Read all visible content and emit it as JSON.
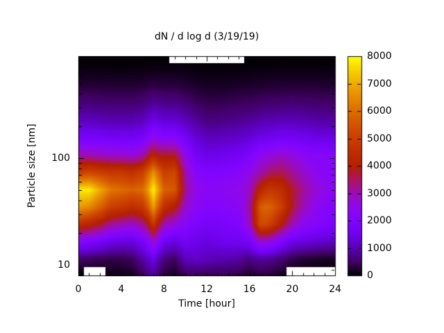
{
  "figure": {
    "title": "dN / d log d (3/19/19)",
    "background": "#ffffff",
    "text_color": "#000000"
  },
  "axes": {
    "xlabel": "Time [hour]",
    "ylabel": "Particle size [nm]",
    "x_range": [
      0,
      24
    ],
    "x_major_tick_values": [
      0,
      4,
      8,
      12,
      16,
      20,
      24
    ],
    "x_tick_labels": [
      "0",
      "4",
      "8",
      "12",
      "16",
      "20",
      "24"
    ],
    "x_minor_step": 1,
    "y_scale": "log",
    "y_range_nm": [
      8,
      900
    ],
    "y_major_tick_values": [
      10,
      100
    ],
    "y_tick_labels": [
      "10",
      "100"
    ],
    "frame_color": "#000000"
  },
  "colorbar": {
    "range": [
      0,
      8000
    ],
    "tick_values": [
      0,
      1000,
      2000,
      3000,
      4000,
      5000,
      6000,
      7000,
      8000
    ],
    "tick_labels": [
      "0",
      "1000",
      "2000",
      "3000",
      "4000",
      "5000",
      "6000",
      "7000",
      "8000"
    ],
    "palette_stops": [
      {
        "t": 0.0,
        "hex": "#000000"
      },
      {
        "t": 0.0625,
        "hex": "#400062"
      },
      {
        "t": 0.125,
        "hex": "#5a00b4"
      },
      {
        "t": 0.1875,
        "hex": "#6e02ec"
      },
      {
        "t": 0.25,
        "hex": "#8004ff"
      },
      {
        "t": 0.3125,
        "hex": "#8f08ec"
      },
      {
        "t": 0.375,
        "hex": "#9c0db4"
      },
      {
        "t": 0.4375,
        "hex": "#a91562"
      },
      {
        "t": 0.5,
        "hex": "#b42000"
      },
      {
        "t": 0.5625,
        "hex": "#bf2d00"
      },
      {
        "t": 0.625,
        "hex": "#ca3e00"
      },
      {
        "t": 0.6875,
        "hex": "#d35300"
      },
      {
        "t": 0.75,
        "hex": "#dd6c00"
      },
      {
        "t": 0.8125,
        "hex": "#e68900"
      },
      {
        "t": 0.875,
        "hex": "#efab00"
      },
      {
        "t": 0.9375,
        "hex": "#f7d200"
      },
      {
        "t": 1.0,
        "hex": "#ffff00"
      }
    ]
  },
  "chart_data": {
    "type": "heatmap",
    "title": "dN / d log d (3/19/19)",
    "xlabel": "Time [hour]",
    "ylabel": "Particle size [nm]",
    "value_range": [
      0,
      8000
    ],
    "missing_note": "null = no data (rendered white)",
    "x_hours": [
      0,
      1,
      2,
      3,
      4,
      5,
      6,
      6.5,
      7,
      7.5,
      8,
      9,
      10,
      11,
      12,
      13,
      14,
      15,
      16,
      17,
      17.5,
      18,
      19,
      20,
      21,
      22,
      23,
      24
    ],
    "y_sizes_nm": [
      8,
      11.6,
      16.8,
      24.3,
      35.2,
      51,
      74,
      107,
      155,
      224,
      325,
      470,
      681,
      900
    ],
    "values": [
      [
        0,
        null,
        null,
        100,
        100,
        150,
        400,
        600,
        800,
        500,
        300,
        150,
        400,
        450,
        400,
        400,
        400,
        350,
        200,
        300,
        280,
        250,
        150,
        null,
        null,
        null,
        null,
        null
      ],
      [
        600,
        500,
        450,
        400,
        400,
        500,
        900,
        1200,
        1500,
        1000,
        700,
        500,
        1100,
        1200,
        1100,
        1000,
        1000,
        900,
        700,
        900,
        850,
        800,
        600,
        400,
        300,
        250,
        200,
        200
      ],
      [
        2200,
        2000,
        1800,
        1500,
        1400,
        1400,
        1800,
        2200,
        2800,
        2200,
        1600,
        1400,
        1700,
        1500,
        1400,
        1500,
        1600,
        1600,
        1800,
        2800,
        2700,
        2600,
        2000,
        1500,
        1400,
        1300,
        1200,
        1100
      ],
      [
        4500,
        4200,
        3800,
        3200,
        3000,
        2800,
        3200,
        3800,
        4800,
        3800,
        3000,
        2600,
        2200,
        1900,
        1800,
        1800,
        1900,
        2000,
        2800,
        5200,
        5300,
        5000,
        4000,
        3000,
        2400,
        2200,
        2000,
        1900
      ],
      [
        6800,
        6500,
        5800,
        5000,
        4800,
        4500,
        4800,
        5600,
        6800,
        5600,
        4500,
        4000,
        2800,
        2300,
        2100,
        2100,
        2200,
        2300,
        3000,
        5600,
        5900,
        5800,
        5000,
        3800,
        3000,
        2500,
        2200,
        2000
      ],
      [
        7800,
        7800,
        7000,
        6200,
        6000,
        5800,
        6000,
        6800,
        7900,
        6800,
        5800,
        5600,
        3200,
        2500,
        2300,
        2300,
        2400,
        2500,
        2800,
        4200,
        4600,
        4800,
        4500,
        3800,
        3200,
        2800,
        2500,
        2300
      ],
      [
        5000,
        5200,
        5000,
        4800,
        4800,
        4600,
        5000,
        5800,
        6600,
        5800,
        5000,
        5200,
        3000,
        2200,
        2000,
        2000,
        2100,
        2200,
        2500,
        3000,
        3200,
        3500,
        3600,
        3200,
        2800,
        2500,
        2200,
        2200
      ],
      [
        3000,
        3000,
        2900,
        2800,
        2800,
        2700,
        3000,
        3600,
        4200,
        3800,
        3800,
        3800,
        2500,
        1700,
        1500,
        1500,
        1600,
        1700,
        1900,
        2400,
        2500,
        2600,
        2800,
        2600,
        2400,
        2200,
        2200,
        2100
      ],
      [
        1800,
        1800,
        1750,
        1700,
        1700,
        1650,
        1800,
        2100,
        2500,
        2300,
        2200,
        2200,
        1700,
        1300,
        1100,
        1100,
        1150,
        1200,
        1300,
        1500,
        1550,
        1600,
        1700,
        1700,
        1600,
        1500,
        1450,
        1400
      ],
      [
        1100,
        1100,
        1050,
        1000,
        1000,
        1000,
        1100,
        1300,
        1500,
        1400,
        1300,
        1300,
        1100,
        850,
        700,
        700,
        750,
        800,
        850,
        950,
        1000,
        1000,
        1050,
        1050,
        1000,
        950,
        900,
        900
      ],
      [
        650,
        650,
        620,
        600,
        600,
        600,
        650,
        750,
        850,
        800,
        750,
        750,
        650,
        500,
        420,
        420,
        450,
        480,
        500,
        550,
        570,
        580,
        600,
        620,
        600,
        580,
        560,
        550
      ],
      [
        300,
        300,
        290,
        280,
        280,
        280,
        300,
        340,
        380,
        360,
        340,
        340,
        300,
        230,
        190,
        190,
        200,
        220,
        230,
        260,
        265,
        270,
        280,
        290,
        290,
        280,
        270,
        260
      ],
      [
        80,
        80,
        75,
        70,
        70,
        70,
        80,
        90,
        100,
        95,
        90,
        90,
        80,
        60,
        50,
        50,
        55,
        60,
        60,
        70,
        70,
        70,
        75,
        80,
        80,
        75,
        70,
        70
      ],
      [
        0,
        0,
        0,
        0,
        0,
        0,
        0,
        0,
        0,
        0,
        0,
        null,
        null,
        null,
        null,
        null,
        null,
        null,
        0,
        0,
        0,
        0,
        0,
        0,
        0,
        0,
        0,
        0
      ]
    ]
  }
}
